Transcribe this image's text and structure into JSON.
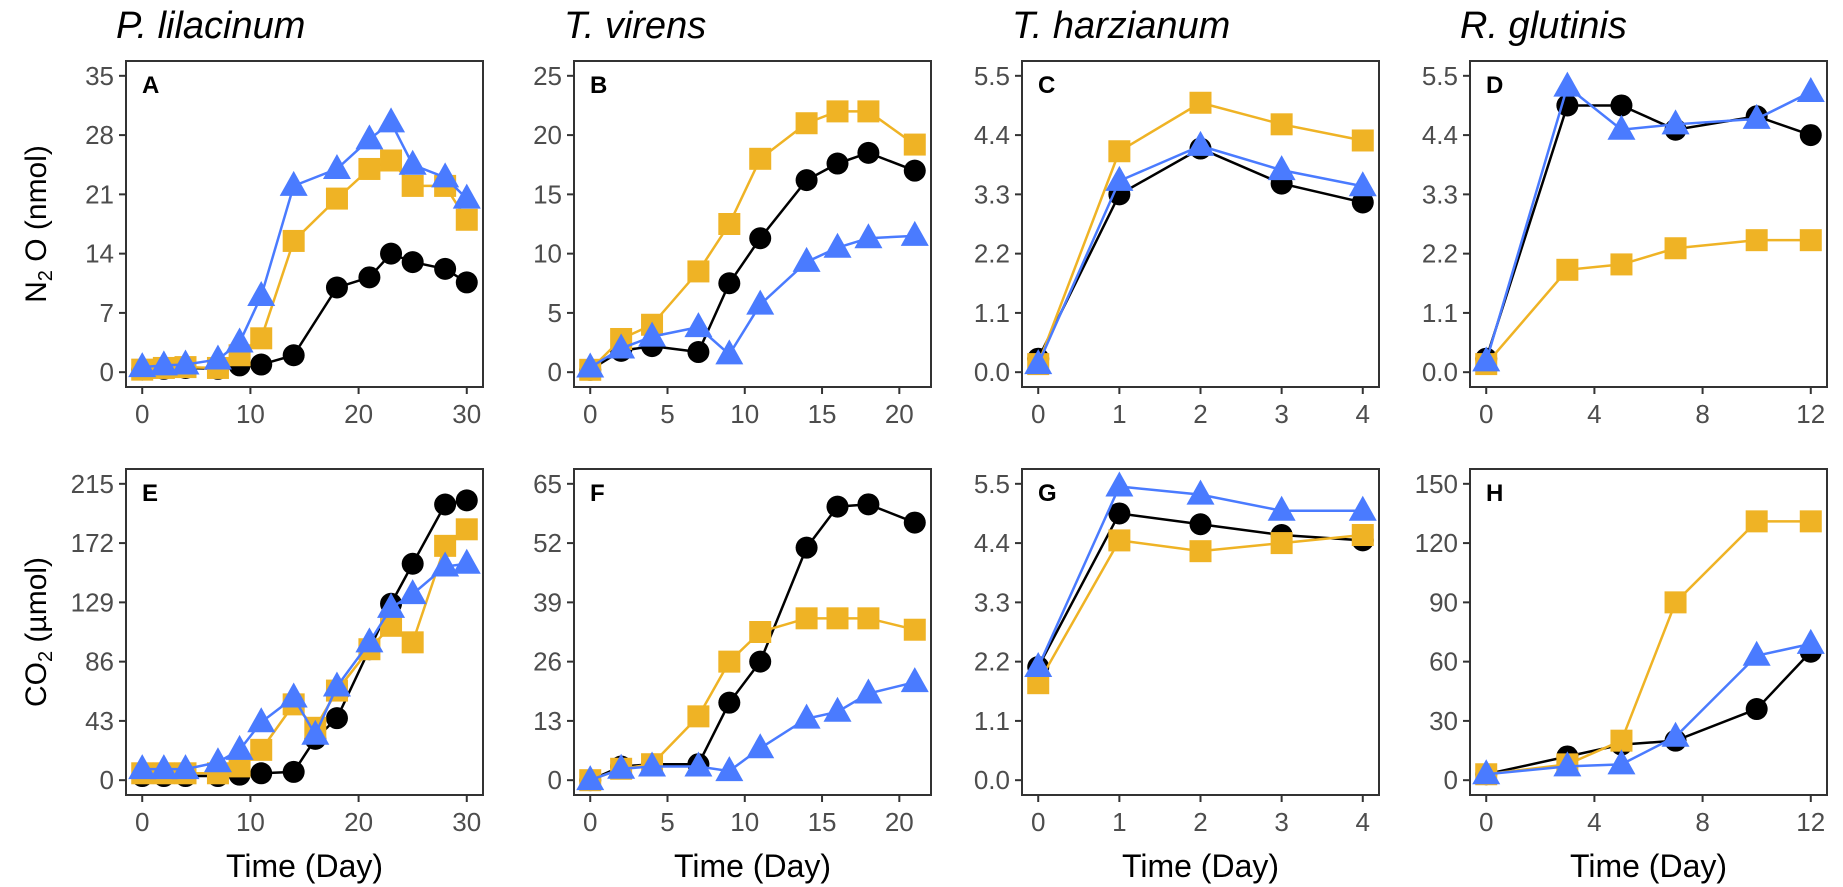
{
  "colors": {
    "control": "#000000",
    "treatment_square": "#EFB325",
    "treatment_triangle": "#4A7BFF",
    "tick_text": "#4D4D4D",
    "frame": "#333333"
  },
  "ylabels": {
    "row1": {
      "main": "N",
      "sub": "2",
      "rest": " O (nmol)"
    },
    "row2": {
      "main": "CO",
      "sub": "2",
      "rest": " (µmol)"
    }
  },
  "chart_data": [
    {
      "type": "line",
      "panel": "A",
      "title": "P. lilacinum",
      "xlabel": "",
      "ylabel": "N2 O (nmol)",
      "xticks": [
        0,
        10,
        20,
        30
      ],
      "yticks": [
        0,
        7,
        14,
        21,
        28,
        35
      ],
      "xlim": [
        0,
        30
      ],
      "ylim": [
        0,
        35
      ],
      "series": [
        {
          "name": "circle",
          "marker": "circle",
          "x": [
            0,
            2,
            4,
            7,
            9,
            11,
            14,
            18,
            21,
            23,
            25,
            28,
            30
          ],
          "y": [
            0.3,
            0.4,
            0.5,
            0.4,
            0.8,
            0.9,
            2,
            10,
            11.2,
            14,
            13,
            12.2,
            10.6
          ]
        },
        {
          "name": "square",
          "marker": "square",
          "x": [
            0,
            2,
            4,
            7,
            9,
            11,
            14,
            18,
            21,
            23,
            25,
            28,
            30
          ],
          "y": [
            0.3,
            0.5,
            0.6,
            0.5,
            2,
            4,
            15.5,
            20.5,
            24,
            25,
            22,
            22,
            18
          ]
        },
        {
          "name": "triangle",
          "marker": "triangle",
          "x": [
            0,
            2,
            4,
            7,
            9,
            11,
            14,
            18,
            21,
            23,
            25,
            28,
            30
          ],
          "y": [
            0.6,
            0.8,
            0.9,
            1.5,
            3.5,
            9,
            22,
            24,
            27.5,
            29.5,
            24.5,
            23,
            20.5
          ]
        }
      ]
    },
    {
      "type": "line",
      "panel": "B",
      "title": "T. virens",
      "xlabel": "",
      "ylabel": "",
      "xticks": [
        0,
        5,
        10,
        15,
        20
      ],
      "yticks": [
        0,
        5,
        10,
        15,
        20,
        25
      ],
      "xlim": [
        0,
        21
      ],
      "ylim": [
        0,
        25
      ],
      "series": [
        {
          "name": "circle",
          "marker": "circle",
          "x": [
            0,
            2,
            4,
            7,
            9,
            11,
            14,
            16,
            18,
            21
          ],
          "y": [
            0.2,
            1.8,
            2.2,
            1.7,
            7.5,
            11.3,
            16.2,
            17.6,
            18.5,
            17
          ]
        },
        {
          "name": "square",
          "marker": "square",
          "x": [
            0,
            2,
            4,
            7,
            9,
            11,
            14,
            16,
            18,
            21
          ],
          "y": [
            0.2,
            2.8,
            4,
            8.5,
            12.5,
            18,
            21,
            22,
            22,
            19.2
          ]
        },
        {
          "name": "triangle",
          "marker": "triangle",
          "x": [
            0,
            2,
            4,
            7,
            9,
            11,
            14,
            16,
            18,
            21
          ],
          "y": [
            0.4,
            2,
            3,
            3.8,
            1.5,
            5.7,
            9.3,
            10.5,
            11.3,
            11.5
          ]
        }
      ]
    },
    {
      "type": "line",
      "panel": "C",
      "title": "T. harzianum",
      "xlabel": "",
      "ylabel": "",
      "xticks": [
        0,
        1,
        2,
        3,
        4
      ],
      "yticks": [
        0.0,
        1.1,
        2.2,
        3.3,
        4.4,
        5.5
      ],
      "xlim": [
        0,
        4
      ],
      "ylim": [
        0,
        5.5
      ],
      "series": [
        {
          "name": "circle",
          "marker": "circle",
          "x": [
            0,
            1,
            2,
            3,
            4
          ],
          "y": [
            0.25,
            3.3,
            4.15,
            3.5,
            3.15
          ]
        },
        {
          "name": "square",
          "marker": "square",
          "x": [
            0,
            1,
            2,
            3,
            4
          ],
          "y": [
            0.15,
            4.1,
            5.0,
            4.6,
            4.3
          ]
        },
        {
          "name": "triangle",
          "marker": "triangle",
          "x": [
            0,
            1,
            2,
            3,
            4
          ],
          "y": [
            0.15,
            3.55,
            4.2,
            3.75,
            3.45
          ]
        }
      ]
    },
    {
      "type": "line",
      "panel": "D",
      "title": "R. glutinis",
      "xlabel": "",
      "ylabel": "",
      "xticks": [
        0,
        4,
        8,
        12
      ],
      "yticks": [
        0.0,
        1.1,
        2.2,
        3.3,
        4.4,
        5.5
      ],
      "xlim": [
        0,
        12
      ],
      "ylim": [
        0,
        5.5
      ],
      "series": [
        {
          "name": "circle",
          "marker": "circle",
          "x": [
            0,
            3,
            5,
            7,
            10,
            12
          ],
          "y": [
            0.25,
            4.95,
            4.95,
            4.5,
            4.75,
            4.4
          ]
        },
        {
          "name": "square",
          "marker": "square",
          "x": [
            0,
            3,
            5,
            7,
            10,
            12
          ],
          "y": [
            0.15,
            1.9,
            2.0,
            2.3,
            2.45,
            2.45
          ]
        },
        {
          "name": "triangle",
          "marker": "triangle",
          "x": [
            0,
            3,
            5,
            7,
            10,
            12
          ],
          "y": [
            0.2,
            5.3,
            4.5,
            4.6,
            4.7,
            5.2
          ]
        }
      ]
    },
    {
      "type": "line",
      "panel": "E",
      "title": "",
      "xlabel": "Time (Day)",
      "ylabel": "CO2 (µmol)",
      "xticks": [
        0,
        10,
        20,
        30
      ],
      "yticks": [
        0,
        43,
        86,
        129,
        172,
        215
      ],
      "xlim": [
        0,
        30
      ],
      "ylim": [
        0,
        215
      ],
      "series": [
        {
          "name": "circle",
          "marker": "circle",
          "x": [
            0,
            2,
            4,
            7,
            9,
            11,
            14,
            16,
            18,
            21,
            23,
            25,
            28,
            30
          ],
          "y": [
            3,
            3,
            3,
            3,
            4,
            5,
            6,
            30,
            45,
            95,
            128,
            157,
            200,
            203
          ]
        },
        {
          "name": "square",
          "marker": "square",
          "x": [
            0,
            2,
            4,
            7,
            9,
            11,
            14,
            16,
            18,
            21,
            23,
            25,
            28,
            30
          ],
          "y": [
            5,
            5,
            5,
            5,
            10,
            22,
            55,
            38,
            65,
            95,
            112,
            100,
            170,
            182
          ]
        },
        {
          "name": "triangle",
          "marker": "triangle",
          "x": [
            0,
            2,
            4,
            7,
            9,
            11,
            14,
            16,
            18,
            21,
            23,
            25,
            28,
            30
          ],
          "y": [
            8,
            8,
            8,
            13,
            22,
            42,
            60,
            33,
            68,
            100,
            125,
            135,
            155,
            157
          ]
        }
      ]
    },
    {
      "type": "line",
      "panel": "F",
      "title": "",
      "xlabel": "Time (Day)",
      "ylabel": "",
      "xticks": [
        0,
        5,
        10,
        15,
        20
      ],
      "yticks": [
        0,
        13,
        26,
        39,
        52,
        65
      ],
      "xlim": [
        0,
        21
      ],
      "ylim": [
        0,
        65
      ],
      "series": [
        {
          "name": "circle",
          "marker": "circle",
          "x": [
            0,
            2,
            4,
            7,
            9,
            11,
            14,
            16,
            18,
            21
          ],
          "y": [
            0,
            3,
            3.5,
            3.5,
            17,
            26,
            51,
            60,
            60.5,
            56.5
          ]
        },
        {
          "name": "square",
          "marker": "square",
          "x": [
            0,
            2,
            4,
            7,
            9,
            11,
            14,
            16,
            18,
            21
          ],
          "y": [
            0,
            2.5,
            3.5,
            14,
            26,
            32.5,
            35.5,
            35.5,
            35.5,
            33
          ]
        },
        {
          "name": "triangle",
          "marker": "triangle",
          "x": [
            0,
            2,
            4,
            7,
            9,
            11,
            14,
            16,
            18,
            21
          ],
          "y": [
            0,
            2.5,
            3,
            3,
            2,
            7,
            13.5,
            15,
            19,
            21.5
          ]
        }
      ]
    },
    {
      "type": "line",
      "panel": "G",
      "title": "",
      "xlabel": "Time (Day)",
      "ylabel": "",
      "xticks": [
        0,
        1,
        2,
        3,
        4
      ],
      "yticks": [
        0.0,
        1.1,
        2.2,
        3.3,
        4.4,
        5.5
      ],
      "xlim": [
        0,
        4
      ],
      "ylim": [
        0,
        5.5
      ],
      "series": [
        {
          "name": "circle",
          "marker": "circle",
          "x": [
            0,
            1,
            2,
            3,
            4
          ],
          "y": [
            2.1,
            4.95,
            4.75,
            4.55,
            4.45
          ]
        },
        {
          "name": "square",
          "marker": "square",
          "x": [
            0,
            1,
            2,
            3,
            4
          ],
          "y": [
            1.8,
            4.45,
            4.25,
            4.4,
            4.55
          ]
        },
        {
          "name": "triangle",
          "marker": "triangle",
          "x": [
            0,
            1,
            2,
            3,
            4
          ],
          "y": [
            2.1,
            5.45,
            5.3,
            5.0,
            5.0
          ]
        }
      ]
    },
    {
      "type": "line",
      "panel": "H",
      "title": "",
      "xlabel": "Time (Day)",
      "ylabel": "",
      "xticks": [
        0,
        4,
        8,
        12
      ],
      "yticks": [
        0,
        30,
        60,
        90,
        120,
        150
      ],
      "xlim": [
        0,
        12
      ],
      "ylim": [
        0,
        150
      ],
      "series": [
        {
          "name": "circle",
          "marker": "circle",
          "x": [
            0,
            3,
            5,
            7,
            10,
            12
          ],
          "y": [
            3,
            12,
            18,
            20,
            36,
            65
          ]
        },
        {
          "name": "square",
          "marker": "square",
          "x": [
            0,
            3,
            5,
            7,
            10,
            12
          ],
          "y": [
            3,
            8,
            20,
            90,
            131,
            131
          ]
        },
        {
          "name": "triangle",
          "marker": "triangle",
          "x": [
            0,
            3,
            5,
            7,
            10,
            12
          ],
          "y": [
            3,
            7,
            8,
            22,
            63,
            69
          ]
        }
      ]
    }
  ]
}
